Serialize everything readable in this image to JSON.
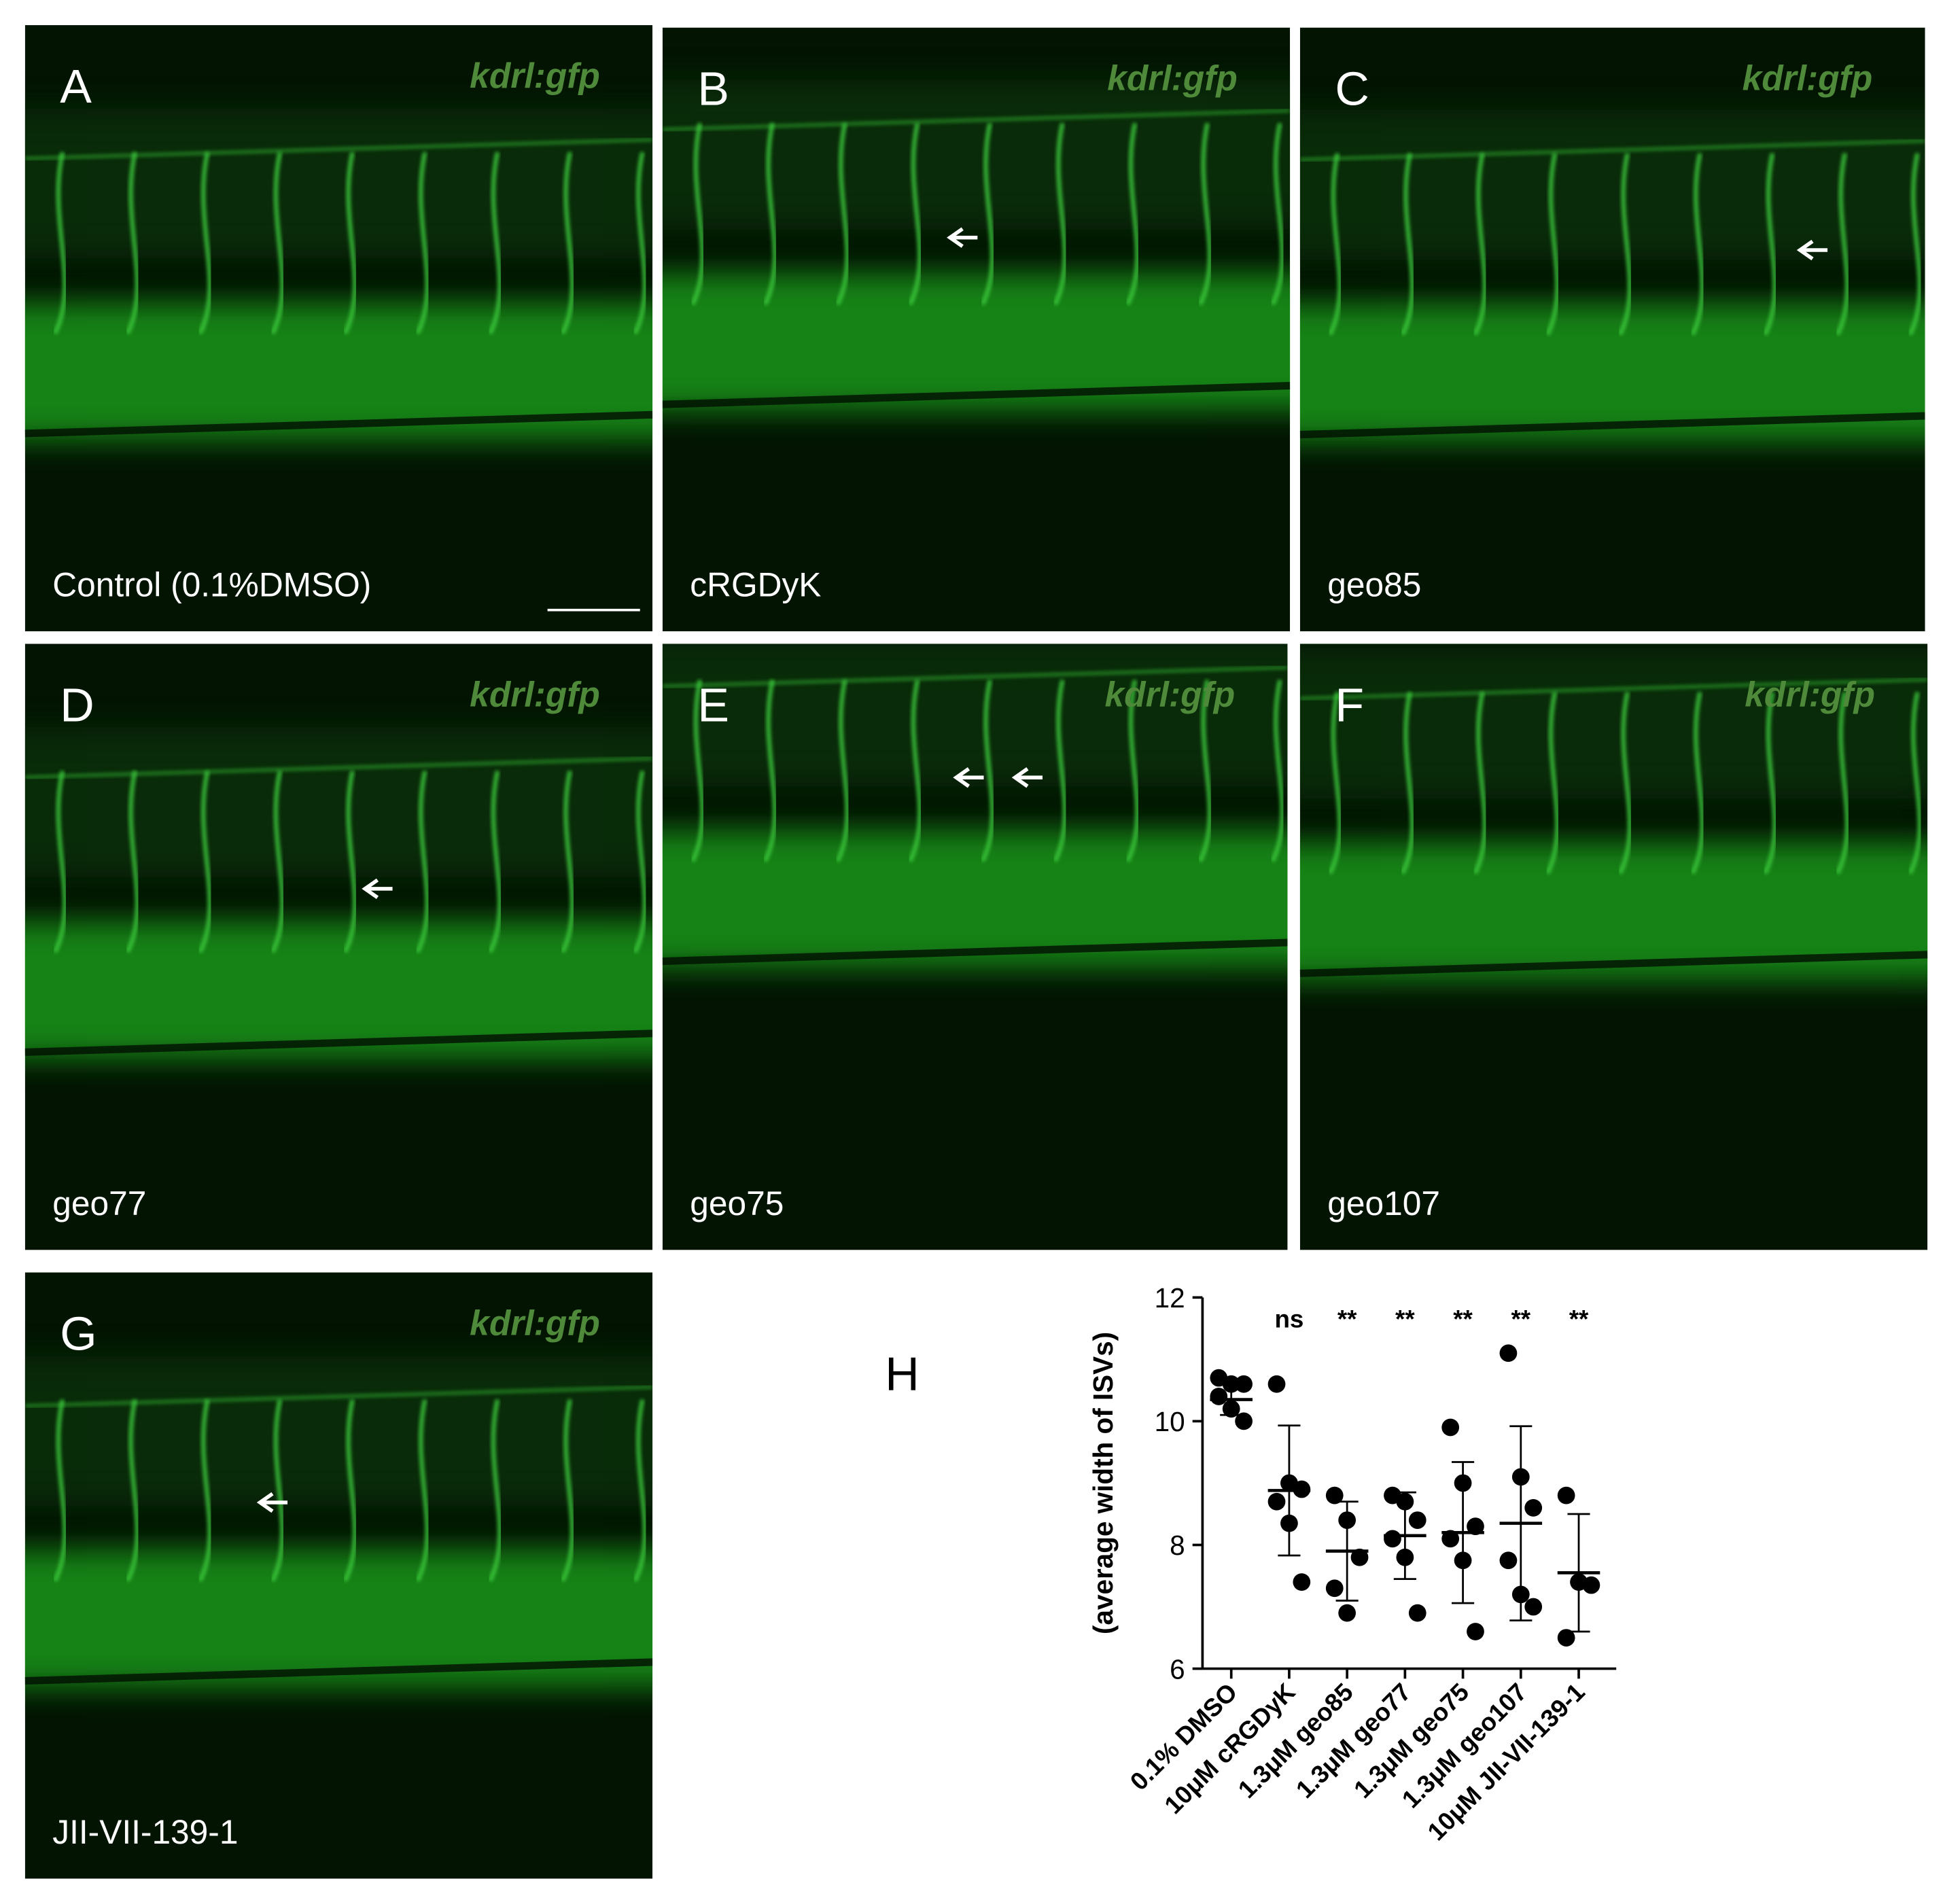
{
  "panels": [
    {
      "letter": "A",
      "marker": "kdrl:gfp",
      "label": "Control (0.1%DMSO)"
    },
    {
      "letter": "B",
      "marker": "kdrl:gfp",
      "label": "cRGDyK"
    },
    {
      "letter": "C",
      "marker": "kdrl:gfp",
      "label": "geo85"
    },
    {
      "letter": "D",
      "marker": "kdrl:gfp",
      "label": "geo77"
    },
    {
      "letter": "E",
      "marker": "kdrl:gfp",
      "label": "geo75"
    },
    {
      "letter": "F",
      "marker": "kdrl:gfp",
      "label": "geo107"
    },
    {
      "letter": "G",
      "marker": "kdrl:gfp",
      "label": "JII-VII-139-1"
    }
  ],
  "chart_data": {
    "type": "dotplot",
    "letter": "H",
    "y_label": "(average width of ISVs)",
    "categories": [
      "0.1% DMSO",
      "10μM cRGDyK",
      "1.3μM geo85",
      "1.3μM geo77",
      "1.3μM geo75",
      "1.3μM geo107",
      "10μM JII-VII-139-1"
    ],
    "points": [
      [
        10.7,
        10.6,
        10.6,
        10.4,
        10.2,
        10.0
      ],
      [
        10.6,
        9.0,
        8.9,
        8.7,
        8.35,
        7.4
      ],
      [
        8.8,
        8.4,
        7.8,
        7.3,
        6.9
      ],
      [
        8.8,
        8.7,
        8.4,
        8.1,
        7.8,
        6.9
      ],
      [
        9.9,
        9.0,
        8.3,
        8.1,
        7.75,
        6.6
      ],
      [
        11.1,
        9.1,
        8.6,
        7.75,
        7.2,
        7.0
      ],
      [
        8.8,
        7.4,
        7.35,
        6.5
      ]
    ],
    "means": [
      10.35,
      8.88,
      7.9,
      8.15,
      8.2,
      8.35,
      7.55
    ],
    "sd": [
      0.25,
      1.05,
      0.8,
      0.7,
      1.14,
      1.57,
      0.95
    ],
    "significance": [
      null,
      "ns",
      "**",
      "**",
      "**",
      "**",
      "**"
    ],
    "ylim": [
      6,
      12
    ],
    "yticks": [
      6,
      8,
      10,
      12
    ],
    "color": "#000000"
  }
}
